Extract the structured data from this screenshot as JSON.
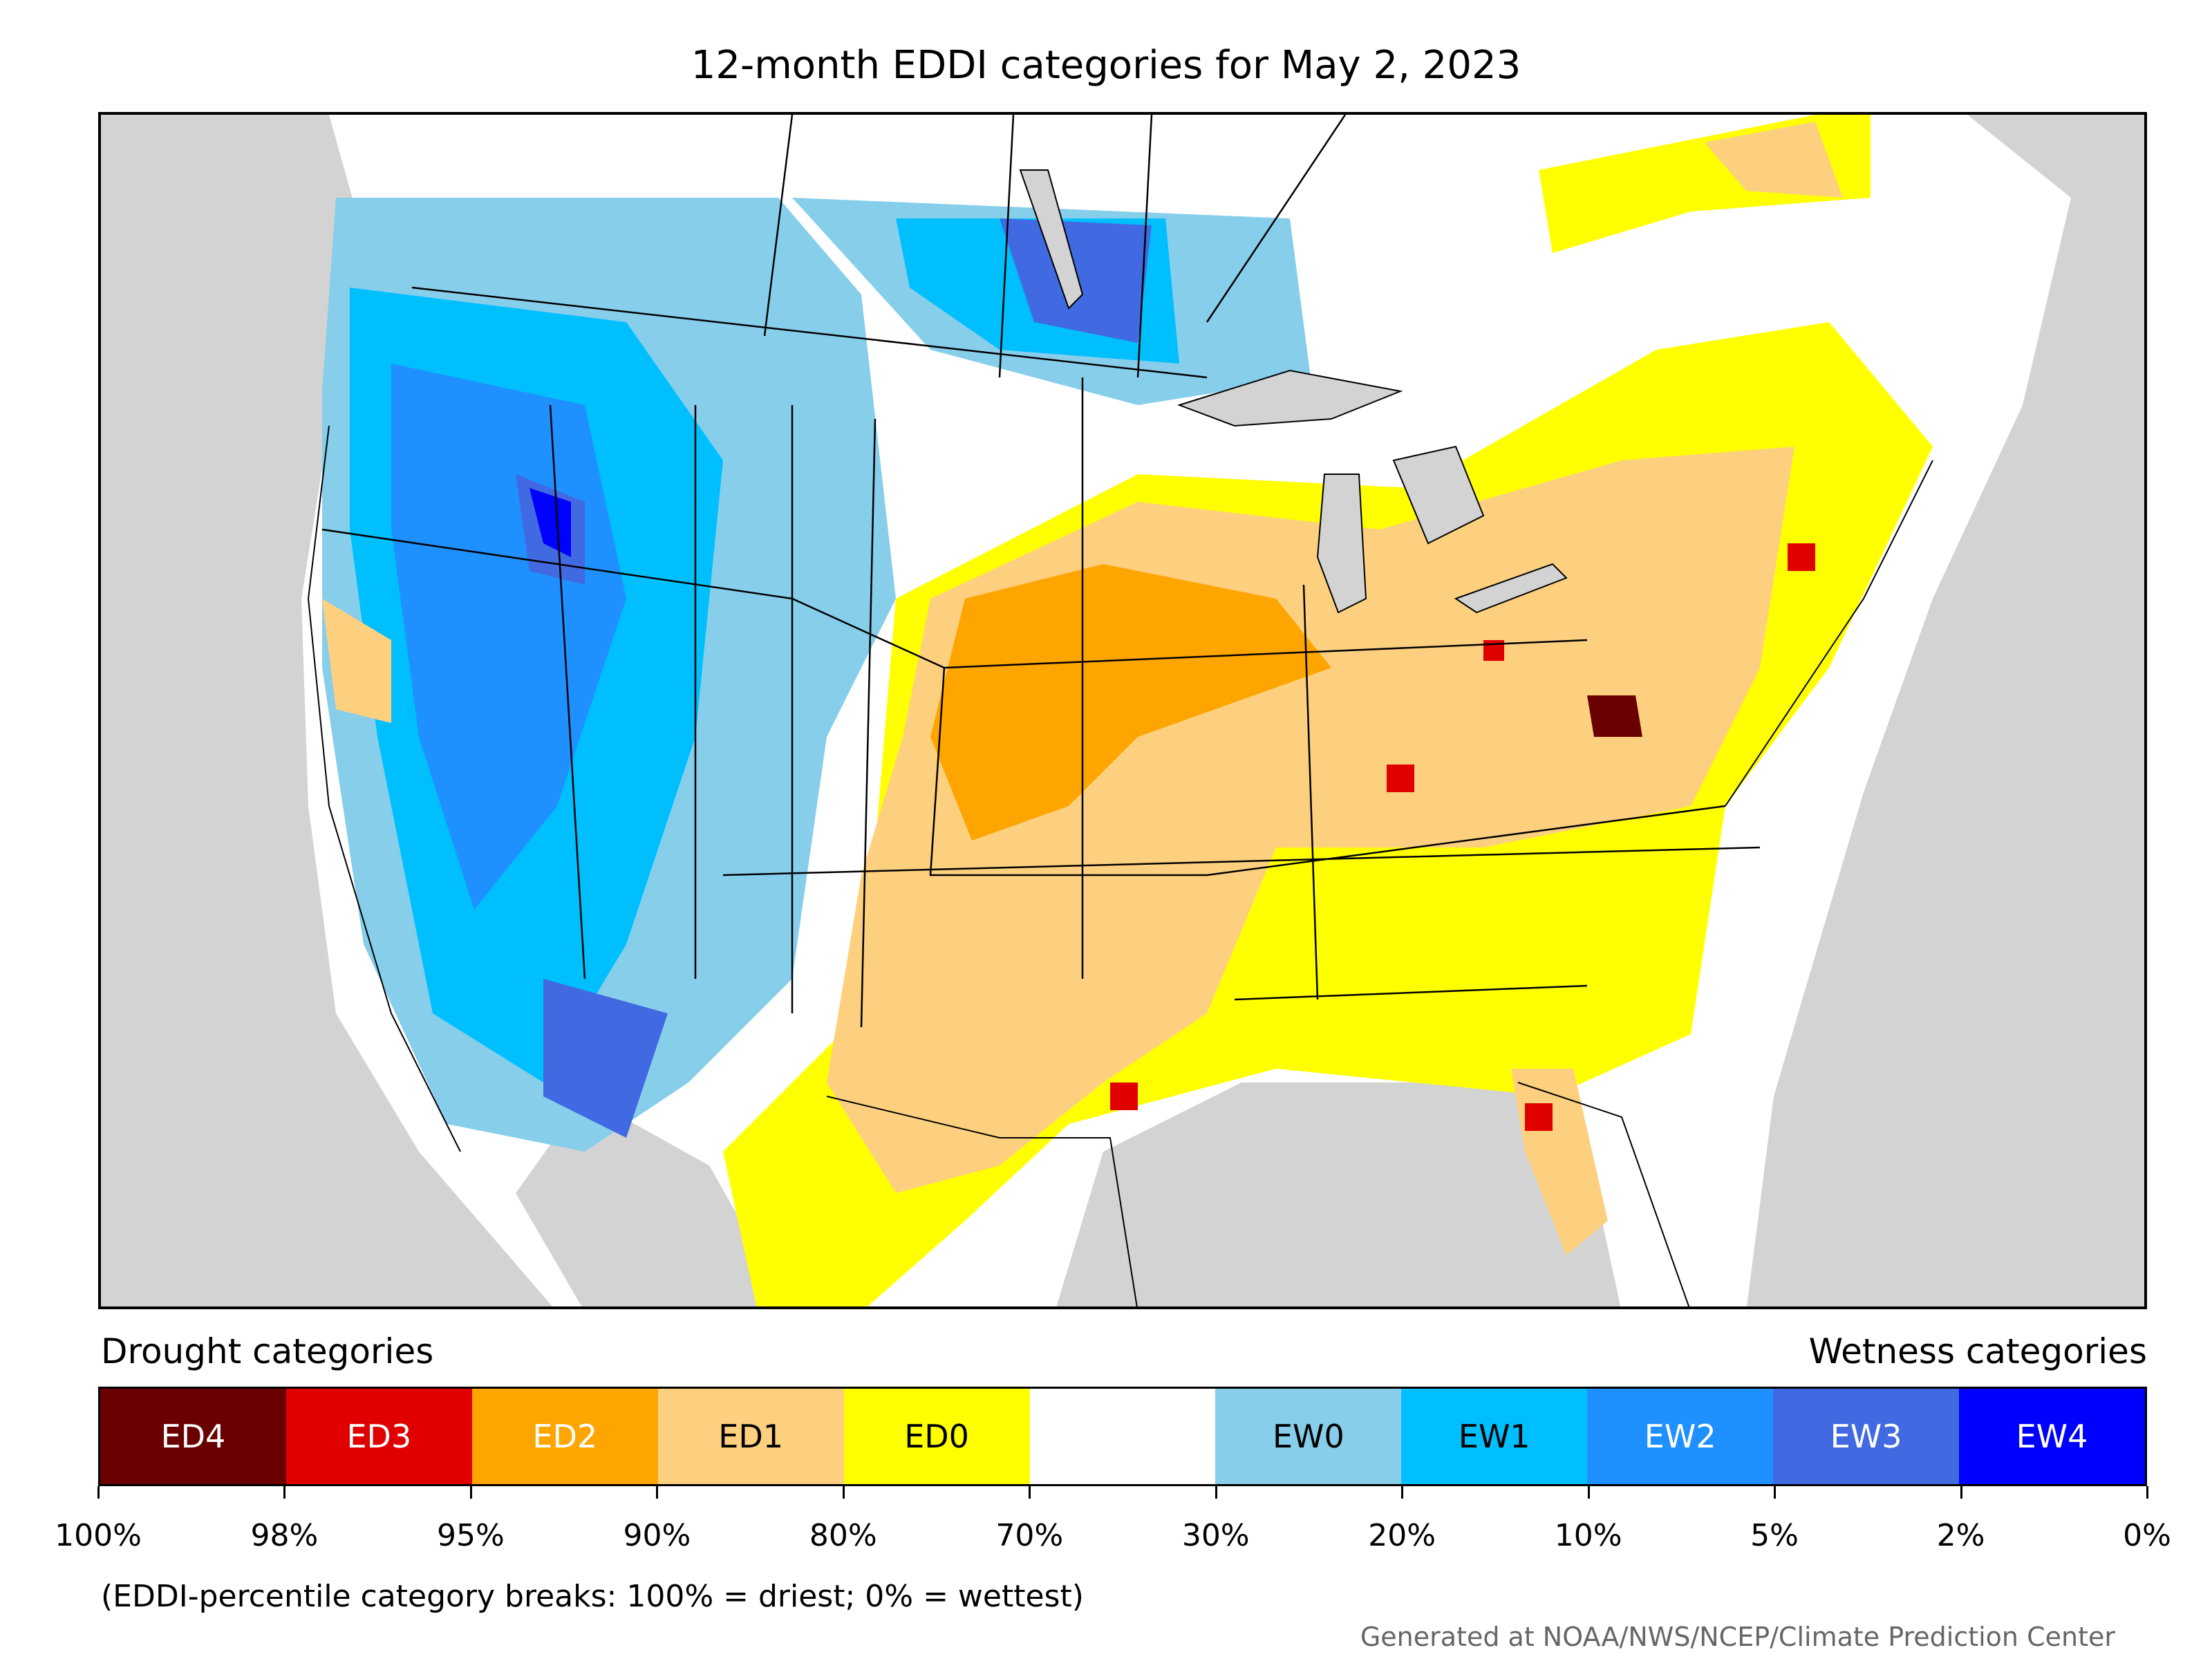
{
  "title": "12-month EDDI categories for May 2, 2023",
  "legend": {
    "drought_heading": "Drought categories",
    "wetness_heading": "Wetness categories",
    "categories": [
      {
        "label": "ED4",
        "color": "#6b0000",
        "text_color": "#ffffff"
      },
      {
        "label": "ED3",
        "color": "#e00000",
        "text_color": "#ffffff"
      },
      {
        "label": "ED2",
        "color": "#ffa500",
        "text_color": "#ffffff"
      },
      {
        "label": "ED1",
        "color": "#fdd080",
        "text_color": "#000000"
      },
      {
        "label": "ED0",
        "color": "#ffff00",
        "text_color": "#000000"
      },
      {
        "label": "",
        "color": "#ffffff",
        "text_color": "#000000"
      },
      {
        "label": "EW0",
        "color": "#87ceeb",
        "text_color": "#000000"
      },
      {
        "label": "EW1",
        "color": "#00bfff",
        "text_color": "#000000"
      },
      {
        "label": "EW2",
        "color": "#1e90ff",
        "text_color": "#ffffff"
      },
      {
        "label": "EW3",
        "color": "#4169e1",
        "text_color": "#ffffff"
      },
      {
        "label": "EW4",
        "color": "#0000ff",
        "text_color": "#ffffff"
      }
    ],
    "tick_labels": [
      "100%",
      "98%",
      "95%",
      "90%",
      "80%",
      "70%",
      "30%",
      "20%",
      "10%",
      "5%",
      "2%",
      "0%"
    ],
    "note": "(EDDI-percentile category breaks: 100% = driest; 0% = wettest)"
  },
  "credit": "Generated at NOAA/NWS/NCEP/Climate Prediction Center",
  "colors": {
    "background_water": "#d3d3d3",
    "border": "#000000"
  }
}
